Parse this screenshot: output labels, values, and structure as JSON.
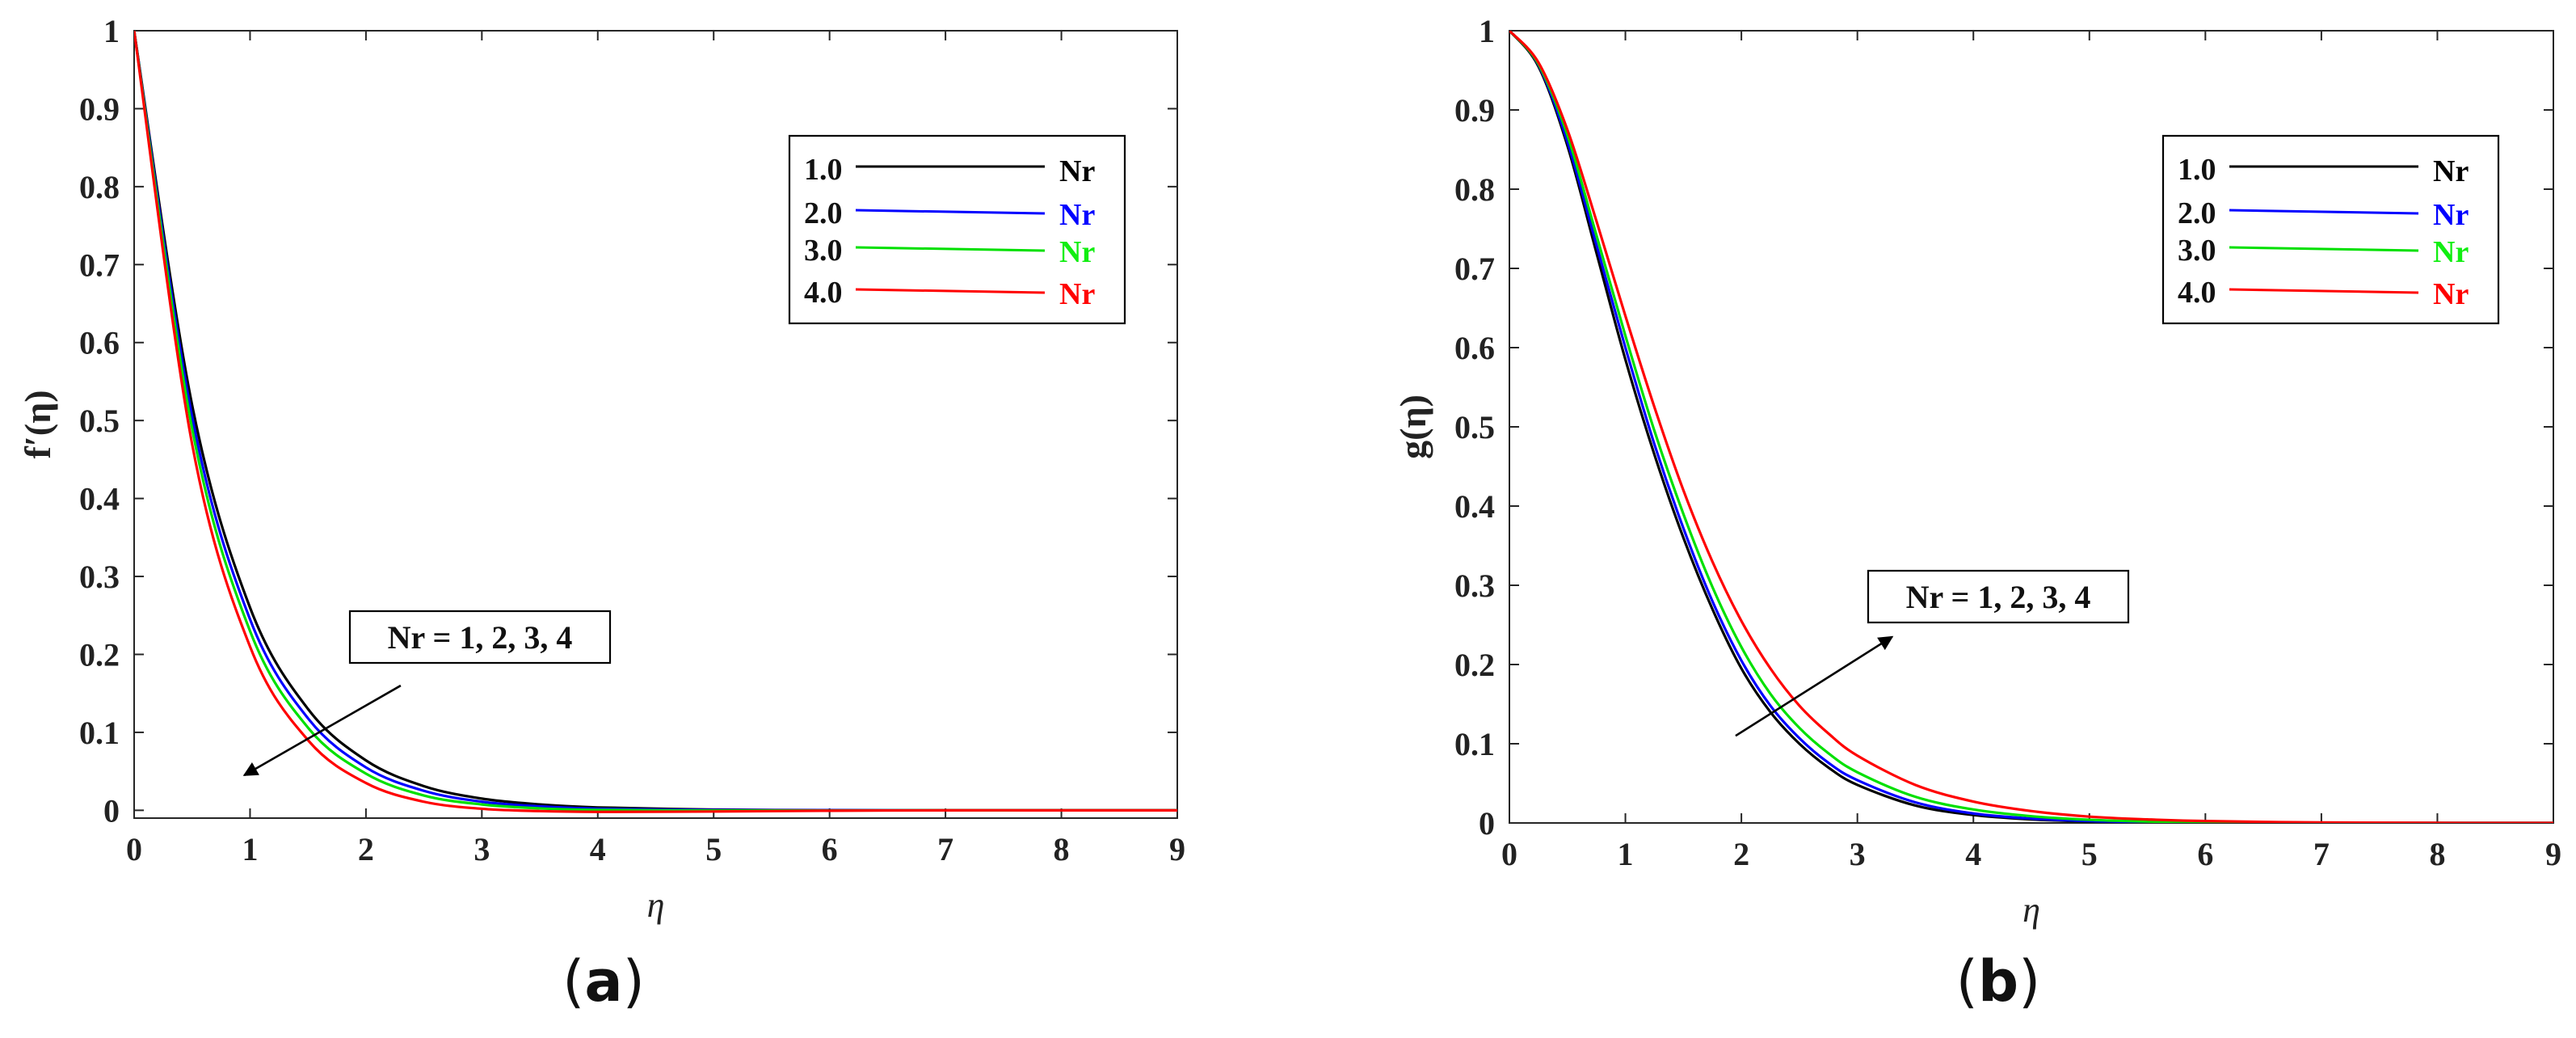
{
  "chart_data": [
    {
      "type": "line",
      "panel_label": "a",
      "title": "",
      "xlabel": "η",
      "ylabel": "f′(η)",
      "xlim": [
        0,
        9
      ],
      "ylim": [
        -0.01,
        1
      ],
      "xticks": [
        "0",
        "1",
        "2",
        "3",
        "4",
        "5",
        "6",
        "7",
        "8",
        "9"
      ],
      "yticks": [
        "0",
        "0.1",
        "0.2",
        "0.3",
        "0.4",
        "0.5",
        "0.6",
        "0.7",
        "0.8",
        "0.9",
        "1"
      ],
      "grid": false,
      "legend_placement": "top-right",
      "annotation": {
        "text": "Nr = 1, 2, 3, 4",
        "arrow_from": [
          2.3,
          0.16
        ],
        "arrow_to": [
          0.95,
          0.045
        ]
      },
      "x": [
        0,
        0.5,
        1,
        1.5,
        2,
        2.5,
        3,
        3.5,
        4,
        5,
        6,
        7,
        8,
        9
      ],
      "series": [
        {
          "name": "1.0",
          "legend_value": "1.0",
          "legend_label": "Nr",
          "color": "#000000",
          "values": [
            1,
            0.52,
            0.26,
            0.13,
            0.064,
            0.031,
            0.015,
            0.0075,
            0.0037,
            0.0009,
            0.0002,
            0,
            0,
            0
          ]
        },
        {
          "name": "2.0",
          "legend_value": "2.0",
          "legend_label": "Nr",
          "color": "#0000ff",
          "values": [
            1,
            0.505,
            0.245,
            0.118,
            0.055,
            0.025,
            0.011,
            0.005,
            0.002,
            0.0004,
            0.0001,
            0,
            0,
            0
          ]
        },
        {
          "name": "3.0",
          "legend_value": "3.0",
          "legend_label": "Nr",
          "color": "#00e000",
          "values": [
            1,
            0.49,
            0.23,
            0.106,
            0.047,
            0.019,
            0.0075,
            0.0025,
            0.0005,
            -0.0003,
            -0.0002,
            0,
            0,
            0
          ]
        },
        {
          "name": "4.0",
          "legend_value": "4.0",
          "legend_label": "Nr",
          "color": "#ff0000",
          "values": [
            1,
            0.47,
            0.21,
            0.09,
            0.035,
            0.011,
            0.002,
            -0.001,
            -0.002,
            -0.0015,
            -0.0005,
            0,
            0,
            0
          ]
        }
      ]
    },
    {
      "type": "line",
      "panel_label": "b",
      "title": "",
      "xlabel": "η",
      "ylabel": "g(η)",
      "xlim": [
        0,
        9
      ],
      "ylim": [
        0,
        1
      ],
      "xticks": [
        "0",
        "1",
        "2",
        "3",
        "4",
        "5",
        "6",
        "7",
        "8",
        "9"
      ],
      "yticks": [
        "0",
        "0.1",
        "0.2",
        "0.3",
        "0.4",
        "0.5",
        "0.6",
        "0.7",
        "0.8",
        "0.9",
        "1"
      ],
      "grid": false,
      "legend_placement": "top-right",
      "annotation": {
        "text": "Nr = 1, 2, 3, 4",
        "arrow_from": [
          1.95,
          0.11
        ],
        "arrow_to": [
          3.3,
          0.235
        ]
      },
      "x": [
        0,
        0.25,
        0.5,
        0.75,
        1,
        1.25,
        1.5,
        1.75,
        2,
        2.25,
        2.5,
        2.75,
        3,
        3.5,
        4,
        4.5,
        5,
        5.5,
        6,
        7,
        8,
        9
      ],
      "series": [
        {
          "name": "1.0",
          "legend_value": "1.0",
          "legend_label": "Nr",
          "color": "#000000",
          "values": [
            1,
            0.955,
            0.855,
            0.72,
            0.585,
            0.465,
            0.36,
            0.27,
            0.195,
            0.14,
            0.1,
            0.07,
            0.048,
            0.022,
            0.01,
            0.0045,
            0.002,
            0.0008,
            0.0003,
            0,
            0,
            0
          ]
        },
        {
          "name": "2.0",
          "legend_value": "2.0",
          "legend_label": "Nr",
          "color": "#0000ff",
          "values": [
            1,
            0.957,
            0.86,
            0.73,
            0.6,
            0.478,
            0.372,
            0.28,
            0.205,
            0.148,
            0.107,
            0.076,
            0.054,
            0.026,
            0.012,
            0.0055,
            0.0025,
            0.001,
            0.0004,
            0,
            0,
            0
          ]
        },
        {
          "name": "3.0",
          "legend_value": "3.0",
          "legend_label": "Nr",
          "color": "#00e000",
          "values": [
            1,
            0.958,
            0.868,
            0.742,
            0.615,
            0.495,
            0.39,
            0.298,
            0.222,
            0.163,
            0.12,
            0.088,
            0.064,
            0.033,
            0.017,
            0.0085,
            0.004,
            0.0018,
            0.0008,
            0.0001,
            0,
            0
          ]
        },
        {
          "name": "4.0",
          "legend_value": "4.0",
          "legend_label": "Nr",
          "color": "#ff0000",
          "values": [
            1,
            0.96,
            0.875,
            0.76,
            0.64,
            0.525,
            0.42,
            0.33,
            0.255,
            0.195,
            0.148,
            0.113,
            0.085,
            0.048,
            0.027,
            0.015,
            0.008,
            0.0045,
            0.0024,
            0.0006,
            0.0001,
            0
          ]
        }
      ]
    }
  ]
}
